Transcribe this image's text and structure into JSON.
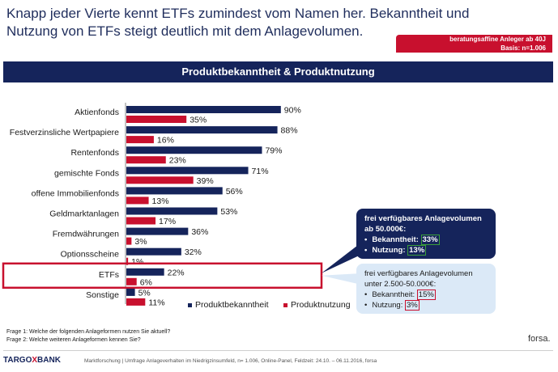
{
  "header": {
    "headline_line1": "Knapp jeder Vierte kennt ETFs zumindest vom Namen her. Bekanntheit und",
    "headline_line2": "Nutzung von ETFs steigt deutlich mit dem Anlagevolumen.",
    "sample_line1": "beratungsaffine Anleger ab 40J",
    "sample_line2": "Basis: n=1.006"
  },
  "section_title": "Produktbekanntheit & Produktnutzung",
  "chart_data": {
    "type": "bar",
    "orientation": "horizontal",
    "categories": [
      "Aktienfonds",
      "Festverzinsliche Wertpapiere",
      "Rentenfonds",
      "gemischte Fonds",
      "offene Immobilienfonds",
      "Geldmarktanlagen",
      "Fremdwährungen",
      "Optionsscheine",
      "ETFs",
      "Sonstige"
    ],
    "series": [
      {
        "name": "Produktbekanntheit",
        "color": "#15245b",
        "values": [
          90,
          88,
          79,
          71,
          56,
          53,
          36,
          32,
          22,
          5
        ]
      },
      {
        "name": "Produktnutzung",
        "color": "#c8102e",
        "values": [
          35,
          16,
          23,
          39,
          13,
          17,
          3,
          1,
          6,
          11
        ]
      }
    ],
    "value_suffix": "%",
    "xlim": [
      0,
      100
    ],
    "highlight_category": "ETFs",
    "legend_position": "bottom"
  },
  "callouts": {
    "high": {
      "line1": "frei verfügbares Anlagevolumen",
      "line2": "ab 50.000€:",
      "bek_label": "Bekanntheit:",
      "bek_value": "33%",
      "nutz_label": "Nutzung:",
      "nutz_value": "13%"
    },
    "low": {
      "line1": "frei verfügbares Anlagevolumen",
      "line2": "unter 2.500-50.000€:",
      "bek_label": "Bekanntheit:",
      "bek_value": "15%",
      "nutz_label": "Nutzung:",
      "nutz_value": "3%"
    }
  },
  "footnotes": {
    "q1": "Frage 1: Welche der folgenden Anlageformen nutzen Sie aktuell?",
    "q2": "Frage 2: Welche weiteren Anlageformen kennen Sie?"
  },
  "footer": {
    "brand_a": "TARGO",
    "brand_x": "X",
    "brand_b": "BANK",
    "source": "Marktforschung | Umfrage Anlageverhalten im Niedrigzinsumfeld, n= 1.006, Online-Panel, Feldzeit: 24.10. – 06.11.2016, forsa",
    "forsa": "forsa."
  }
}
